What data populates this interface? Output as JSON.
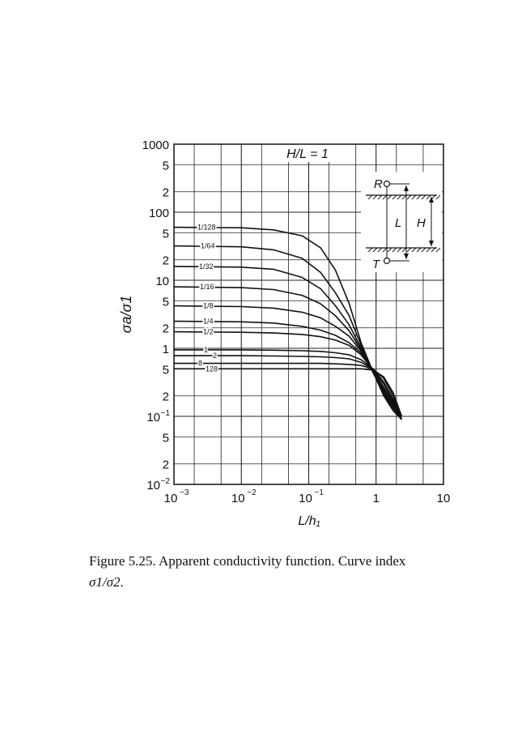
{
  "chart_data": {
    "type": "line",
    "title": "H/L = 1",
    "xlabel": "L/h₁",
    "ylabel": "σa/σ1",
    "x_scale": "log",
    "y_scale": "log",
    "xlim": [
      0.001,
      10
    ],
    "ylim": [
      0.01,
      1000
    ],
    "grid": true,
    "x_ticks": [
      {
        "value": 0.001,
        "label": "10",
        "exp": "−3"
      },
      {
        "value": 0.01,
        "label": "10",
        "exp": "−2"
      },
      {
        "value": 0.1,
        "label": "10",
        "exp": "−1"
      },
      {
        "value": 1,
        "label": "1",
        "exp": ""
      },
      {
        "value": 10,
        "label": "10",
        "exp": ""
      }
    ],
    "y_ticks": [
      {
        "value": 1000,
        "label": "1000",
        "exp": ""
      },
      {
        "value": 500,
        "label": "5",
        "exp": ""
      },
      {
        "value": 200,
        "label": "2",
        "exp": ""
      },
      {
        "value": 100,
        "label": "100",
        "exp": ""
      },
      {
        "value": 50,
        "label": "5",
        "exp": ""
      },
      {
        "value": 20,
        "label": "2",
        "exp": ""
      },
      {
        "value": 10,
        "label": "10",
        "exp": ""
      },
      {
        "value": 5,
        "label": "5",
        "exp": ""
      },
      {
        "value": 2,
        "label": "2",
        "exp": ""
      },
      {
        "value": 1,
        "label": "1",
        "exp": ""
      },
      {
        "value": 0.5,
        "label": "5",
        "exp": ""
      },
      {
        "value": 0.2,
        "label": "2",
        "exp": ""
      },
      {
        "value": 0.1,
        "label": "10",
        "exp": "−1"
      },
      {
        "value": 0.05,
        "label": "5",
        "exp": ""
      },
      {
        "value": 0.02,
        "label": "2",
        "exp": ""
      },
      {
        "value": 0.01,
        "label": "10",
        "exp": "−2"
      }
    ],
    "series": [
      {
        "name": "1/128",
        "x": [
          0.001,
          0.01,
          0.03,
          0.08,
          0.15,
          0.25,
          0.4,
          0.6,
          0.9,
          1.3,
          1.8,
          2.4
        ],
        "y": [
          60,
          59,
          55,
          45,
          30,
          14,
          4.5,
          1.2,
          0.45,
          0.2,
          0.12,
          0.09
        ]
      },
      {
        "name": "1/64",
        "x": [
          0.001,
          0.01,
          0.03,
          0.08,
          0.15,
          0.25,
          0.4,
          0.6,
          0.9,
          1.3,
          1.8,
          2.4
        ],
        "y": [
          32,
          31,
          28,
          21,
          13,
          6.5,
          3,
          1.1,
          0.45,
          0.21,
          0.13,
          0.09
        ]
      },
      {
        "name": "1/32",
        "x": [
          0.001,
          0.01,
          0.03,
          0.08,
          0.15,
          0.25,
          0.4,
          0.6,
          0.9,
          1.3,
          1.8,
          2.4
        ],
        "y": [
          16,
          15.6,
          14.5,
          11,
          7.5,
          4.2,
          2.2,
          1.0,
          0.44,
          0.22,
          0.14,
          0.09
        ]
      },
      {
        "name": "1/16",
        "x": [
          0.001,
          0.01,
          0.03,
          0.08,
          0.15,
          0.25,
          0.4,
          0.6,
          0.9,
          1.3,
          1.8,
          2.4
        ],
        "y": [
          8,
          7.8,
          7.3,
          6,
          4.5,
          3,
          1.8,
          0.95,
          0.45,
          0.23,
          0.14,
          0.09
        ]
      },
      {
        "name": "1/8",
        "x": [
          0.001,
          0.01,
          0.03,
          0.08,
          0.15,
          0.25,
          0.4,
          0.6,
          0.9,
          1.3,
          1.8,
          2.4
        ],
        "y": [
          4.2,
          4.1,
          3.9,
          3.4,
          2.8,
          2.1,
          1.5,
          0.9,
          0.46,
          0.24,
          0.15,
          0.09
        ]
      },
      {
        "name": "1/4",
        "x": [
          0.001,
          0.01,
          0.03,
          0.08,
          0.15,
          0.25,
          0.4,
          0.6,
          0.9,
          1.3,
          1.8,
          2.4
        ],
        "y": [
          2.5,
          2.45,
          2.35,
          2.1,
          1.85,
          1.55,
          1.2,
          0.85,
          0.47,
          0.25,
          0.15,
          0.09
        ]
      },
      {
        "name": "1/2",
        "x": [
          0.001,
          0.01,
          0.03,
          0.08,
          0.15,
          0.25,
          0.4,
          0.6,
          0.9,
          1.3,
          1.8,
          2.4
        ],
        "y": [
          1.75,
          1.72,
          1.68,
          1.6,
          1.48,
          1.32,
          1.1,
          0.8,
          0.48,
          0.27,
          0.16,
          0.09
        ]
      },
      {
        "name": "1",
        "x": [
          0.001,
          0.01,
          0.03,
          0.08,
          0.15,
          0.25,
          0.4,
          0.6,
          0.9,
          1.3,
          1.8,
          2.4
        ],
        "y": [
          0.95,
          0.95,
          0.94,
          0.92,
          0.9,
          0.86,
          0.8,
          0.68,
          0.5,
          0.3,
          0.17,
          0.09
        ]
      },
      {
        "name": "2",
        "x": [
          0.001,
          0.01,
          0.03,
          0.08,
          0.15,
          0.25,
          0.4,
          0.6,
          0.9,
          1.3,
          1.8,
          2.4
        ],
        "y": [
          0.78,
          0.78,
          0.77,
          0.76,
          0.75,
          0.73,
          0.7,
          0.62,
          0.5,
          0.32,
          0.18,
          0.09
        ]
      },
      {
        "name": "8",
        "x": [
          0.001,
          0.01,
          0.03,
          0.08,
          0.15,
          0.25,
          0.4,
          0.6,
          0.9,
          1.3,
          1.8,
          2.4
        ],
        "y": [
          0.6,
          0.6,
          0.6,
          0.6,
          0.6,
          0.59,
          0.58,
          0.56,
          0.5,
          0.36,
          0.2,
          0.1
        ]
      },
      {
        "name": "128",
        "x": [
          0.001,
          0.01,
          0.03,
          0.08,
          0.15,
          0.25,
          0.4,
          0.6,
          0.9,
          1.3,
          1.8,
          2.4
        ],
        "y": [
          0.5,
          0.5,
          0.5,
          0.5,
          0.5,
          0.5,
          0.5,
          0.5,
          0.48,
          0.38,
          0.22,
          0.1
        ]
      }
    ],
    "inset": {
      "labels": {
        "R": "R",
        "T": "T",
        "L": "L",
        "H": "H"
      }
    }
  },
  "caption": {
    "line1": "Figure 5.25.  Apparent conductivity function.  Curve index",
    "line2_var": "σ1/σ2",
    "line2_end": "."
  }
}
